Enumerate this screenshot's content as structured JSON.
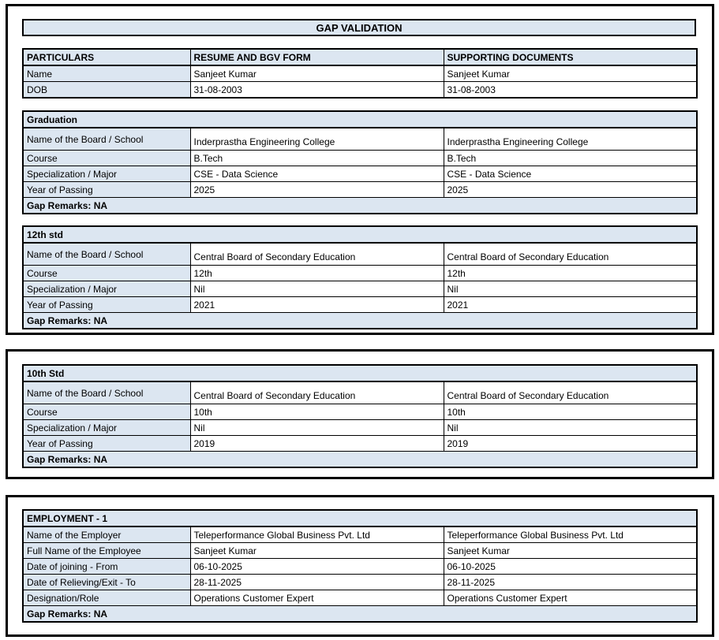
{
  "document": {
    "title": "GAP VALIDATION"
  },
  "columns": {
    "particulars": "PARTICULARS",
    "resume": "RESUME AND BGV FORM",
    "supporting": "SUPPORTING DOCUMENTS"
  },
  "particulars": {
    "rows": [
      {
        "label": "Name",
        "resume": "Sanjeet Kumar",
        "supporting": "Sanjeet Kumar"
      },
      {
        "label": "DOB",
        "resume": "31-08-2003",
        "supporting": "31-08-2003"
      }
    ]
  },
  "sections": [
    {
      "heading": "Graduation",
      "rows": [
        {
          "label": "Name of the Board / School",
          "resume": "Inderprastha Engineering College",
          "supporting": "Inderprastha Engineering College"
        },
        {
          "label": "Course",
          "resume": "B.Tech",
          "supporting": "B.Tech"
        },
        {
          "label": "Specialization / Major",
          "resume": "CSE - Data Science",
          "supporting": "CSE - Data Science"
        },
        {
          "label": "Year of Passing",
          "resume": "2025",
          "supporting": "2025"
        }
      ],
      "remarks": "Gap Remarks: NA"
    },
    {
      "heading": "12th std",
      "rows": [
        {
          "label": "Name of the Board / School",
          "resume": "Central Board of Secondary Education",
          "supporting": "Central Board of Secondary Education"
        },
        {
          "label": "Course",
          "resume": "12th",
          "supporting": "12th"
        },
        {
          "label": "Specialization / Major",
          "resume": "Nil",
          "supporting": "Nil"
        },
        {
          "label": "Year of Passing",
          "resume": "2021",
          "supporting": "2021"
        }
      ],
      "remarks": "Gap Remarks: NA"
    },
    {
      "heading": "10th Std",
      "rows": [
        {
          "label": "Name of the Board / School",
          "resume": "Central Board of Secondary Education",
          "supporting": "Central Board of Secondary Education"
        },
        {
          "label": "Course",
          "resume": "10th",
          "supporting": "10th"
        },
        {
          "label": "Specialization / Major",
          "resume": "Nil",
          "supporting": "Nil"
        },
        {
          "label": "Year of Passing",
          "resume": "2019",
          "supporting": "2019"
        }
      ],
      "remarks": "Gap Remarks: NA"
    },
    {
      "heading": "EMPLOYMENT - 1",
      "rows": [
        {
          "label": "Name of the Employer",
          "resume": "Teleperformance Global Business Pvt. Ltd",
          "supporting": "Teleperformance Global Business Pvt. Ltd"
        },
        {
          "label": "Full Name of the Employee",
          "resume": "Sanjeet Kumar",
          "supporting": "Sanjeet Kumar"
        },
        {
          "label": "Date of joining - From",
          "resume": "06-10-2025",
          "supporting": "06-10-2025"
        },
        {
          "label": "Date of Relieving/Exit - To",
          "resume": "28-11-2025",
          "supporting": "28-11-2025"
        },
        {
          "label": "Designation/Role",
          "resume": "Operations Customer Expert",
          "supporting": "Operations Customer Expert"
        }
      ],
      "remarks": "Gap Remarks: NA"
    }
  ],
  "colors": {
    "cell_fill": "#dce6f1",
    "border": "#000000",
    "text": "#000000"
  }
}
